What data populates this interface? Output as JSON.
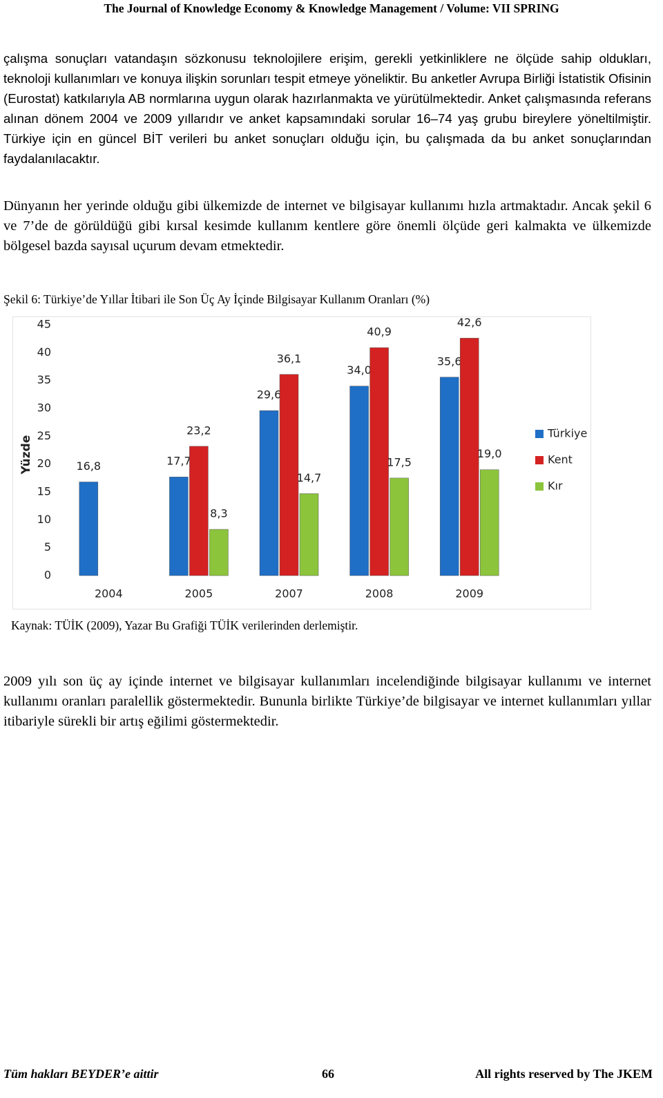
{
  "header": "The Journal of Knowledge Economy & Knowledge Management / Volume: VII SPRING",
  "paragraphs": [
    "çalışma sonuçları vatandaşın sözkonusu teknolojilere erişim, gerekli yetkinliklere ne ölçüde sahip oldukları, teknoloji kullanımları ve konuya ilişkin sorunları tespit etmeye yöneliktir. Bu anketler Avrupa Birliği İstatistik Ofisinin (Eurostat) katkılarıyla AB normlarına uygun olarak hazırlanmakta ve yürütülmektedir. Anket çalışmasında referans alınan dönem 2004 ve 2009 yıllarıdır ve anket kapsamındaki sorular 16–74 yaş grubu bireylere yöneltilmiştir. Türkiye için en güncel BİT verileri bu anket sonuçları olduğu için,  bu çalışmada da bu anket sonuçlarından faydalanılacaktır.",
    "Dünyanın her yerinde olduğu gibi ülkemizde de internet ve bilgisayar kullanımı hızla artmaktadır. Ancak şekil 6 ve 7’de de görüldüğü gibi kırsal kesimde kullanım kentlere göre önemli ölçüde geri kalmakta ve ülkemizde bölgesel bazda sayısal uçurum devam etmektedir.",
    "2009 yılı son üç ay içinde internet ve bilgisayar kullanımları incelendiğinde bilgisayar kullanımı ve internet kullanımı oranları paralellik göstermektedir. Bununla birlikte Türkiye’de bilgisayar ve internet kullanımları yıllar itibariyle sürekli bir artış eğilimi göstermektedir."
  ],
  "figure_title": "Şekil 6: Türkiye’de Yıllar İtibari ile Son Üç Ay İçinde Bilgisayar Kullanım Oranları (%)",
  "chart_data": {
    "type": "bar",
    "y_label": "Yüzde",
    "categories": [
      "2004",
      "2005",
      "2007",
      "2008",
      "2009"
    ],
    "series": [
      {
        "name": "Türkiye",
        "color": "#1f6fc6",
        "values": [
          16.8,
          17.7,
          29.6,
          34.0,
          35.6
        ],
        "value_labels": [
          "16,8",
          "17,7",
          "29,6",
          "34,0",
          "35,6"
        ]
      },
      {
        "name": "Kent",
        "color": "#d42222",
        "values": [
          null,
          23.2,
          36.1,
          40.9,
          42.6
        ],
        "value_labels": [
          null,
          "23,2",
          "36,1",
          "40,9",
          "42,6"
        ]
      },
      {
        "name": "Kır",
        "color": "#8cc43c",
        "values": [
          null,
          8.3,
          14.7,
          17.5,
          19.0
        ],
        "value_labels": [
          null,
          "8,3",
          "14,7",
          "17,5",
          "19,0"
        ]
      }
    ],
    "ylim": [
      0,
      45
    ],
    "yticks": [
      0,
      5,
      10,
      15,
      20,
      25,
      30,
      35,
      40,
      45
    ],
    "grid": false,
    "legend": "right"
  },
  "source": "Kaynak: TÜİK (2009), Yazar Bu Grafiği TÜİK verilerinden derlemiştir.",
  "footer": {
    "left": "Tüm hakları BEYDER’e aittir",
    "page": "66",
    "right": "All rights reserved by The JKEM"
  }
}
